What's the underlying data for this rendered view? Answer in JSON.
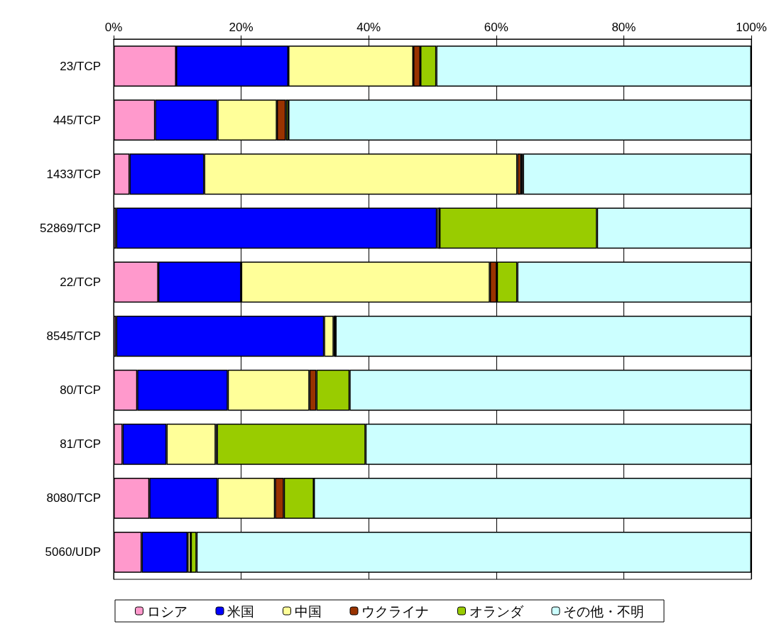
{
  "chart_data": {
    "type": "bar",
    "orientation": "horizontal",
    "stacked": true,
    "categories": [
      "23/TCP",
      "445/TCP",
      "1433/TCP",
      "52869/TCP",
      "22/TCP",
      "8545/TCP",
      "80/TCP",
      "81/TCP",
      "8080/TCP",
      "5060/UDP"
    ],
    "series": [
      {
        "name": "ロシア",
        "color": "#ff99cc",
        "values": [
          9.8,
          6.5,
          2.5,
          0.4,
          7.0,
          0.4,
          3.7,
          1.4,
          5.6,
          4.4
        ]
      },
      {
        "name": "米国",
        "color": "#0000ff",
        "values": [
          17.6,
          9.8,
          11.7,
          50.3,
          13.0,
          32.6,
          14.2,
          6.9,
          10.7,
          7.2
        ]
      },
      {
        "name": "中国",
        "color": "#ffff99",
        "values": [
          19.6,
          9.3,
          49.1,
          0.4,
          39.0,
          1.5,
          12.8,
          7.7,
          9.0,
          0.5
        ]
      },
      {
        "name": "ウクライナ",
        "color": "#993300",
        "values": [
          1.1,
          1.4,
          0.6,
          0,
          1.1,
          0.3,
          1.1,
          0.2,
          1.4,
          0
        ]
      },
      {
        "name": "オランダ",
        "color": "#99cc00",
        "values": [
          2.5,
          0.4,
          0.3,
          24.7,
          3.2,
          0,
          5.2,
          23.3,
          4.7,
          0.9
        ]
      },
      {
        "name": "その他・不明",
        "color": "#ccffff",
        "values": [
          49.4,
          72.6,
          35.8,
          24.2,
          36.7,
          65.2,
          63.0,
          60.5,
          68.6,
          87.0
        ]
      }
    ],
    "xlim": [
      0,
      100
    ],
    "xticks": [
      {
        "value": 0,
        "label": "0%"
      },
      {
        "value": 20,
        "label": "20%"
      },
      {
        "value": 40,
        "label": "40%"
      },
      {
        "value": 60,
        "label": "60%"
      },
      {
        "value": 80,
        "label": "80%"
      },
      {
        "value": 100,
        "label": "100%"
      }
    ],
    "grid": "x",
    "legend": "bottom"
  }
}
